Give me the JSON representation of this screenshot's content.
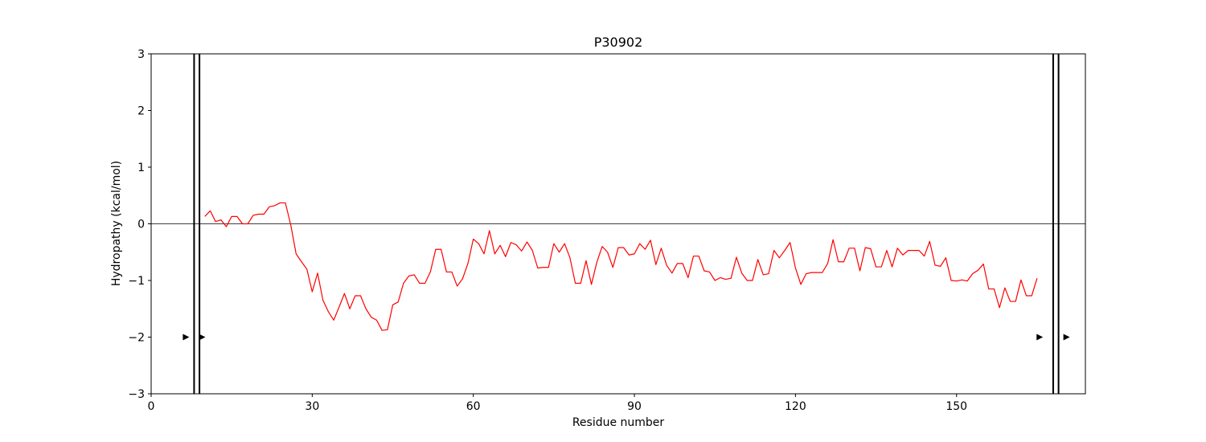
{
  "chart_data": {
    "type": "line",
    "title": "P30902",
    "xlabel": "Residue number",
    "ylabel": "Hydropathy (kcal/mol)",
    "xlim": [
      0,
      174
    ],
    "ylim": [
      -3,
      3
    ],
    "xticks": [
      0,
      30,
      60,
      90,
      120,
      150
    ],
    "yticks": [
      -3,
      -2,
      -1,
      0,
      1,
      2,
      3
    ],
    "xtick_labels": [
      "0",
      "30",
      "60",
      "90",
      "120",
      "150"
    ],
    "ytick_labels": [
      "−3",
      "−2",
      "−1",
      "0",
      "1",
      "2",
      "3"
    ],
    "line_color": "#ff0000",
    "zero_line": 0,
    "boundaries": [
      8,
      9,
      168,
      169
    ],
    "markers": [
      {
        "x": 6.5,
        "y": -2
      },
      {
        "x": 9.5,
        "y": -2
      },
      {
        "x": 165.5,
        "y": -2
      },
      {
        "x": 170.5,
        "y": -2
      }
    ],
    "series": [
      {
        "name": "hydropathy",
        "x_start": 10,
        "values": [
          0.13,
          0.23,
          0.04,
          0.07,
          -0.05,
          0.13,
          0.13,
          0.0,
          0.0,
          0.15,
          0.17,
          0.17,
          0.3,
          0.32,
          0.37,
          0.37,
          -0.02,
          -0.53,
          -0.67,
          -0.8,
          -1.2,
          -0.87,
          -1.35,
          -1.55,
          -1.7,
          -1.47,
          -1.23,
          -1.5,
          -1.27,
          -1.27,
          -1.5,
          -1.65,
          -1.7,
          -1.88,
          -1.87,
          -1.43,
          -1.38,
          -1.05,
          -0.92,
          -0.9,
          -1.05,
          -1.05,
          -0.85,
          -0.45,
          -0.45,
          -0.85,
          -0.85,
          -1.1,
          -0.97,
          -0.7,
          -0.27,
          -0.35,
          -0.53,
          -0.12,
          -0.53,
          -0.38,
          -0.58,
          -0.33,
          -0.37,
          -0.48,
          -0.32,
          -0.47,
          -0.78,
          -0.77,
          -0.77,
          -0.35,
          -0.5,
          -0.35,
          -0.6,
          -1.05,
          -1.05,
          -0.65,
          -1.07,
          -0.68,
          -0.4,
          -0.5,
          -0.77,
          -0.42,
          -0.42,
          -0.55,
          -0.53,
          -0.35,
          -0.45,
          -0.29,
          -0.72,
          -0.43,
          -0.73,
          -0.87,
          -0.7,
          -0.7,
          -0.95,
          -0.57,
          -0.57,
          -0.83,
          -0.85,
          -1.0,
          -0.95,
          -0.98,
          -0.96,
          -0.59,
          -0.87,
          -1.0,
          -1.0,
          -0.63,
          -0.9,
          -0.88,
          -0.47,
          -0.6,
          -0.47,
          -0.33,
          -0.78,
          -1.07,
          -0.88,
          -0.86,
          -0.86,
          -0.86,
          -0.7,
          -0.28,
          -0.67,
          -0.67,
          -0.43,
          -0.43,
          -0.83,
          -0.42,
          -0.44,
          -0.76,
          -0.76,
          -0.47,
          -0.76,
          -0.43,
          -0.55,
          -0.47,
          -0.47,
          -0.47,
          -0.57,
          -0.31,
          -0.73,
          -0.75,
          -0.6,
          -1.0,
          -1.01,
          -0.99,
          -1.01,
          -0.88,
          -0.82,
          -0.71,
          -1.15,
          -1.15,
          -1.48,
          -1.13,
          -1.37,
          -1.37,
          -0.99,
          -1.27,
          -1.27,
          -0.96
        ]
      }
    ]
  }
}
